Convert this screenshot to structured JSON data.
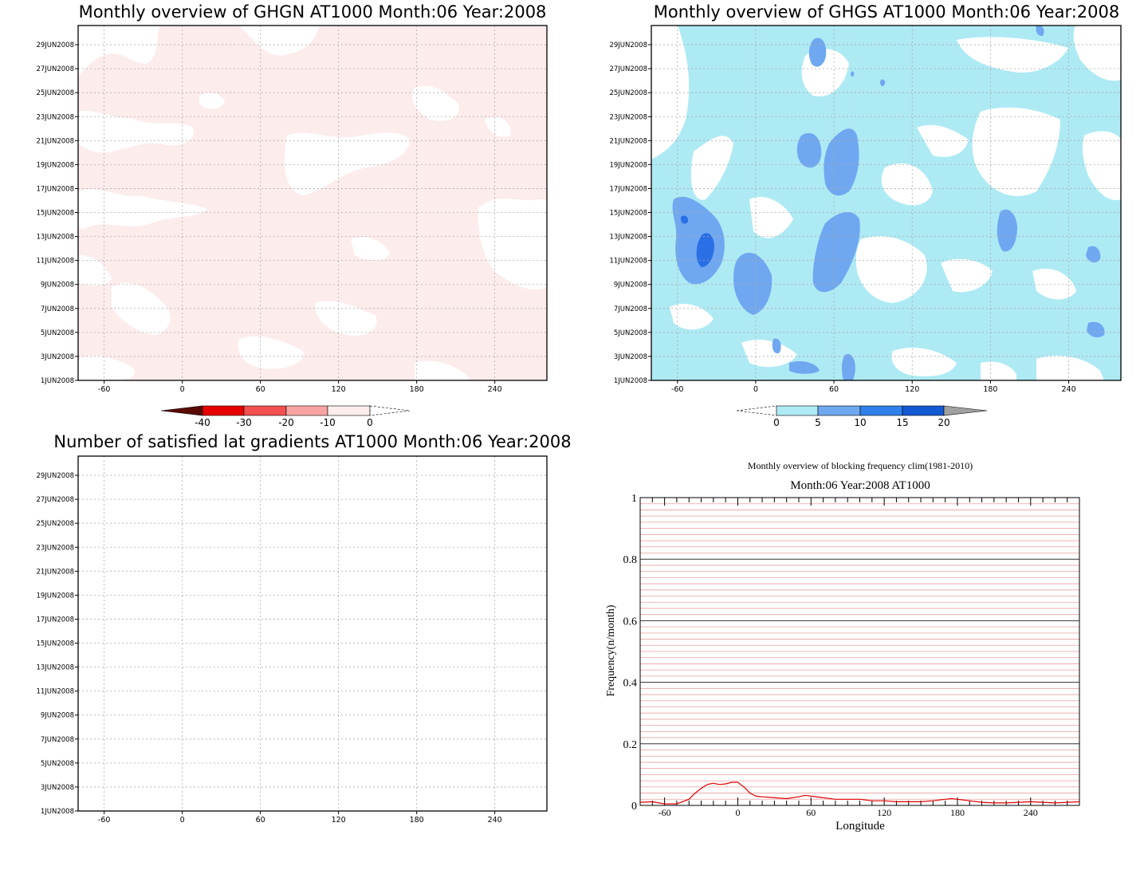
{
  "colors": {
    "ghgn_fill": "#fdecec",
    "ghgs_light": "#aeeaf4",
    "ghgs_mid": "#6fa8f0",
    "ghgs_dark": "#2a6fe6",
    "line_red": "#e00000",
    "grid_dotted": "#aaaaaa"
  },
  "panels": [
    {
      "id": "ghgn",
      "title": "Monthly overview of GHGN AT1000 Month:06 Year:2008",
      "xticks": [
        "-60",
        "0",
        "60",
        "120",
        "180",
        "240"
      ],
      "yticks": [
        "1JUN2008",
        "3JUN2008",
        "5JUN2008",
        "7JUN2008",
        "9JUN2008",
        "11JUN2008",
        "13JUN2008",
        "15JUN2008",
        "17JUN2008",
        "19JUN2008",
        "21JUN2008",
        "23JUN2008",
        "25JUN2008",
        "27JUN2008",
        "29JUN2008"
      ],
      "colorbar": {
        "labels": [
          "-40",
          "-30",
          "-20",
          "-10",
          "0"
        ],
        "colors": [
          "#5a0a00",
          "#e60000",
          "#f25050",
          "#f9a3a3",
          "#fdecec"
        ]
      }
    },
    {
      "id": "ghgs",
      "title": "Monthly overview of GHGS AT1000 Month:06 Year:2008",
      "xticks": [
        "-60",
        "0",
        "60",
        "120",
        "180",
        "240"
      ],
      "yticks": [
        "1JUN2008",
        "3JUN2008",
        "5JUN2008",
        "7JUN2008",
        "9JUN2008",
        "11JUN2008",
        "13JUN2008",
        "15JUN2008",
        "17JUN2008",
        "19JUN2008",
        "21JUN2008",
        "23JUN2008",
        "25JUN2008",
        "27JUN2008",
        "29JUN2008"
      ],
      "colorbar": {
        "labels": [
          "0",
          "5",
          "10",
          "15",
          "20"
        ],
        "colors": [
          "#aeeaf4",
          "#6fa8f0",
          "#2f80ea",
          "#1459d4",
          "#a0a0a0"
        ]
      }
    },
    {
      "id": "nsat",
      "title": "Number of satisfied lat gradients AT1000 Month:06 Year:2008",
      "xticks": [
        "-60",
        "0",
        "60",
        "120",
        "180",
        "240"
      ],
      "yticks": [
        "1JUN2008",
        "3JUN2008",
        "5JUN2008",
        "7JUN2008",
        "9JUN2008",
        "11JUN2008",
        "13JUN2008",
        "15JUN2008",
        "17JUN2008",
        "19JUN2008",
        "21JUN2008",
        "23JUN2008",
        "25JUN2008",
        "27JUN2008",
        "29JUN2008"
      ]
    }
  ],
  "chart_data": [
    {
      "type": "heatmap",
      "title": "Monthly overview of GHGN AT1000 Month:06 Year:2008",
      "x_range": [
        -80,
        280
      ],
      "y_range": [
        "1JUN2008",
        "30JUN2008"
      ],
      "levels": [
        -40,
        -30,
        -20,
        -10,
        0
      ],
      "grid": true
    },
    {
      "type": "heatmap",
      "title": "Monthly overview of GHGS AT1000 Month:06 Year:2008",
      "x_range": [
        -80,
        280
      ],
      "y_range": [
        "1JUN2008",
        "30JUN2008"
      ],
      "levels": [
        0,
        5,
        10,
        15,
        20
      ],
      "grid": true
    },
    {
      "type": "heatmap",
      "title": "Number of satisfied lat gradients AT1000 Month:06 Year:2008",
      "x_range": [
        -80,
        280
      ],
      "y_range": [
        "1JUN2008",
        "30JUN2008"
      ],
      "grid": true
    },
    {
      "type": "line",
      "title": "Monthly overview of blocking frequency clim(1981-2010)",
      "subtitle": "Month:06 Year:2008  AT1000",
      "xlabel": "Longitude",
      "ylabel": "Frequency(n/month)",
      "xlim": [
        -80,
        280
      ],
      "ylim": [
        0,
        1
      ],
      "xticks": [
        "-60",
        "0",
        "60",
        "120",
        "180",
        "240"
      ],
      "yticks": [
        "0",
        "0.2",
        "0.4",
        "0.6",
        "0.8",
        "1"
      ],
      "series": [
        {
          "x": [
            -80,
            -70,
            -60,
            -50,
            -40,
            -35,
            -30,
            -25,
            -20,
            -15,
            -10,
            -5,
            0,
            5,
            10,
            15,
            20,
            30,
            40,
            50,
            55,
            60,
            70,
            80,
            90,
            100,
            110,
            120,
            130,
            140,
            150,
            160,
            170,
            175,
            180,
            190,
            200,
            210,
            220,
            230,
            240,
            250,
            260,
            270,
            280
          ],
          "y": [
            0.01,
            0.012,
            0.005,
            0.005,
            0.02,
            0.04,
            0.055,
            0.068,
            0.072,
            0.068,
            0.07,
            0.075,
            0.075,
            0.06,
            0.04,
            0.03,
            0.028,
            0.025,
            0.022,
            0.028,
            0.033,
            0.03,
            0.025,
            0.02,
            0.02,
            0.02,
            0.015,
            0.015,
            0.012,
            0.012,
            0.012,
            0.015,
            0.02,
            0.022,
            0.02,
            0.015,
            0.01,
            0.008,
            0.008,
            0.01,
            0.012,
            0.01,
            0.008,
            0.01,
            0.012
          ]
        }
      ]
    }
  ]
}
